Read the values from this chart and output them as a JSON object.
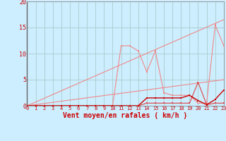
{
  "xlabel": "Vent moyen/en rafales ( km/h )",
  "bg_color": "#cceeff",
  "grid_color": "#aacccc",
  "xlim": [
    0,
    23
  ],
  "ylim": [
    0,
    20
  ],
  "xticks": [
    0,
    1,
    2,
    3,
    4,
    5,
    6,
    7,
    8,
    9,
    10,
    11,
    12,
    13,
    14,
    15,
    16,
    17,
    18,
    19,
    20,
    21,
    22,
    23
  ],
  "yticks": [
    0,
    5,
    10,
    15,
    20
  ],
  "tick_color": "#cc0000",
  "line_salmon": "#f08888",
  "line_dark": "#cc0000",
  "line_med": "#dd4444",
  "line1_x": [
    0,
    1,
    2,
    3,
    4,
    5,
    6,
    7,
    8,
    9,
    10,
    11,
    12,
    13,
    14,
    15,
    16,
    17,
    18,
    19,
    20,
    21,
    22,
    23
  ],
  "line1_y": [
    0,
    0,
    0,
    0,
    0,
    0,
    0,
    0,
    0,
    0,
    0,
    11.5,
    11.5,
    10.5,
    6.5,
    10.5,
    2.5,
    2.0,
    2.0,
    2.0,
    0.5,
    0.5,
    15.5,
    11.5
  ],
  "line2_x": [
    0,
    23
  ],
  "line2_y": [
    0,
    16.5
  ],
  "line3_x": [
    0,
    23
  ],
  "line3_y": [
    0,
    5.0
  ],
  "line4_x": [
    0,
    1,
    2,
    3,
    4,
    5,
    6,
    7,
    8,
    9,
    10,
    11,
    12,
    13,
    14,
    15,
    16,
    17,
    18,
    19,
    20,
    21,
    22,
    23
  ],
  "line4_y": [
    0,
    0,
    0,
    0,
    0,
    0,
    0,
    0,
    0,
    0,
    0,
    0,
    0,
    0,
    1.5,
    1.5,
    1.5,
    1.5,
    1.5,
    2.0,
    1.0,
    0.2,
    1.2,
    3.0
  ],
  "line5_x": [
    0,
    1,
    2,
    3,
    4,
    5,
    6,
    7,
    8,
    9,
    10,
    11,
    12,
    13,
    14,
    15,
    16,
    17,
    18,
    19,
    20,
    21,
    22,
    23
  ],
  "line5_y": [
    0,
    0,
    0,
    0,
    0,
    0,
    0,
    0,
    0,
    0,
    0,
    0,
    0,
    0,
    0.5,
    0.5,
    0.5,
    0.5,
    0.5,
    0.5,
    4.5,
    0.2,
    0.5,
    0.5
  ]
}
